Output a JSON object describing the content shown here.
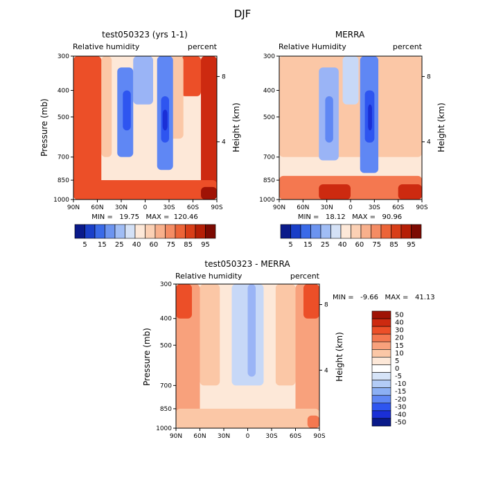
{
  "page_title": "DJF",
  "colors": {
    "neg5": "#1a2fd6",
    "neg4": "#2e55f0",
    "neg3": "#5f87f4",
    "neg2": "#9ab4f6",
    "neg1": "#c7d8f7",
    "zero": "#fde8d8",
    "pos1": "#fbc7a6",
    "pos2": "#f8a17c",
    "pos3": "#f47850",
    "pos4": "#ec4f28",
    "pos5": "#cd2a10",
    "pos6": "#9f1305"
  },
  "chart_data": [
    {
      "type": "heatmap",
      "title": "test050323 (yrs 1-1)",
      "variable": "Relative humidity",
      "units": "percent",
      "ylabel": "Pressure (mb)",
      "ylabel_right": "Height (km)",
      "x_ticks": [
        "90N",
        "60N",
        "30N",
        "0",
        "30S",
        "60S",
        "90S"
      ],
      "y_ticks": [
        "300",
        "400",
        "500",
        "700",
        "850",
        "1000"
      ],
      "height_ticks": [
        "8",
        "4"
      ],
      "ylim": [
        1000,
        300
      ],
      "stats_text": "MIN =   19.75   MAX =  120.46",
      "min": 19.75,
      "max": 120.46,
      "colorbar": {
        "labels": [
          "5",
          "15",
          "25",
          "40",
          "60",
          "75",
          "85",
          "95"
        ],
        "colors": [
          "#0a1a8a",
          "#1a3fc8",
          "#3a6ae8",
          "#6c94f0",
          "#a0bdf5",
          "#d4e1f6",
          "#fde8d8",
          "#fbd0b4",
          "#f8b08c",
          "#f48c64",
          "#ec6438",
          "#d83e18",
          "#b51f06",
          "#7c0a02"
        ]
      },
      "regions": [
        {
          "lat": [
            -90,
            -70
          ],
          "p": [
            300,
            1000
          ],
          "level": "pos5"
        },
        {
          "lat": [
            -70,
            -45
          ],
          "p": [
            300,
            420
          ],
          "level": "pos4"
        },
        {
          "lat": [
            -48,
            -30
          ],
          "p": [
            300,
            600
          ],
          "level": "pos1"
        },
        {
          "lat": [
            -35,
            -15
          ],
          "p": [
            300,
            780
          ],
          "level": "neg3"
        },
        {
          "lat": [
            -30,
            -20
          ],
          "p": [
            420,
            620
          ],
          "level": "neg4"
        },
        {
          "lat": [
            -28,
            -22
          ],
          "p": [
            470,
            560
          ],
          "level": "neg5"
        },
        {
          "lat": [
            -10,
            15
          ],
          "p": [
            300,
            450
          ],
          "level": "neg2"
        },
        {
          "lat": [
            15,
            35
          ],
          "p": [
            330,
            700
          ],
          "level": "neg3"
        },
        {
          "lat": [
            18,
            28
          ],
          "p": [
            400,
            560
          ],
          "level": "neg4"
        },
        {
          "lat": [
            42,
            55
          ],
          "p": [
            300,
            700
          ],
          "level": "pos1"
        },
        {
          "lat": [
            55,
            90
          ],
          "p": [
            300,
            1000
          ],
          "level": "pos4"
        },
        {
          "lat": [
            -90,
            90
          ],
          "p": [
            850,
            1000
          ],
          "level": "pos4"
        },
        {
          "lat": [
            -90,
            -70
          ],
          "p": [
            900,
            1000
          ],
          "level": "pos6"
        }
      ]
    },
    {
      "type": "heatmap",
      "title": "MERRA",
      "variable": "Relative Humidity",
      "units": "percent",
      "ylabel": "Pressure (mb)",
      "ylabel_right": "Height (km)",
      "x_ticks": [
        "90N",
        "60N",
        "30N",
        "0",
        "30S",
        "60S",
        "90S"
      ],
      "y_ticks": [
        "300",
        "400",
        "500",
        "700",
        "850",
        "1000"
      ],
      "height_ticks": [
        "8",
        "4"
      ],
      "ylim": [
        1000,
        300
      ],
      "stats_text": "MIN =   18.12   MAX =   90.96",
      "min": 18.12,
      "max": 90.96,
      "colorbar": {
        "labels": [
          "5",
          "15",
          "25",
          "40",
          "60",
          "75",
          "85",
          "95"
        ],
        "colors": [
          "#0a1a8a",
          "#1a3fc8",
          "#3a6ae8",
          "#6c94f0",
          "#a0bdf5",
          "#d4e1f6",
          "#fde8d8",
          "#fbd0b4",
          "#f8b08c",
          "#f48c64",
          "#ec6438",
          "#d83e18",
          "#b51f06",
          "#7c0a02"
        ]
      },
      "regions": [
        {
          "lat": [
            -90,
            90
          ],
          "p": [
            300,
            700
          ],
          "level": "pos1"
        },
        {
          "lat": [
            -35,
            -12
          ],
          "p": [
            300,
            800
          ],
          "level": "neg3"
        },
        {
          "lat": [
            -30,
            -18
          ],
          "p": [
            400,
            620
          ],
          "level": "neg4"
        },
        {
          "lat": [
            -27,
            -22
          ],
          "p": [
            450,
            560
          ],
          "level": "neg5"
        },
        {
          "lat": [
            -10,
            10
          ],
          "p": [
            300,
            450
          ],
          "level": "neg1"
        },
        {
          "lat": [
            15,
            40
          ],
          "p": [
            330,
            720
          ],
          "level": "neg2"
        },
        {
          "lat": [
            22,
            32
          ],
          "p": [
            420,
            620
          ],
          "level": "neg3"
        },
        {
          "lat": [
            -90,
            90
          ],
          "p": [
            820,
            1000
          ],
          "level": "pos3"
        },
        {
          "lat": [
            -90,
            -60
          ],
          "p": [
            880,
            1000
          ],
          "level": "pos5"
        },
        {
          "lat": [
            0,
            40
          ],
          "p": [
            880,
            1000
          ],
          "level": "pos5"
        }
      ]
    },
    {
      "type": "heatmap",
      "title": "test050323 - MERRA",
      "variable": "Relative humidity",
      "units": "percent",
      "ylabel": "Pressure (mb)",
      "ylabel_right": "Height (km)",
      "x_ticks": [
        "90N",
        "60N",
        "30N",
        "0",
        "30S",
        "60S",
        "90S"
      ],
      "y_ticks": [
        "300",
        "400",
        "500",
        "700",
        "850",
        "1000"
      ],
      "height_ticks": [
        "8",
        "4"
      ],
      "ylim": [
        1000,
        300
      ],
      "stats_text": "MIN =   -9.66   MAX =   41.13",
      "min": -9.66,
      "max": 41.13,
      "colorbar": {
        "labels": [
          "50",
          "40",
          "30",
          "20",
          "15",
          "10",
          "5",
          "0",
          "-5",
          "-10",
          "-15",
          "-20",
          "-30",
          "-40",
          "-50"
        ],
        "colors": [
          "#9f1305",
          "#cd2a10",
          "#ec4f28",
          "#f47850",
          "#f8a17c",
          "#fbc7a6",
          "#fde8d8",
          "#ffffff",
          "#d6e4f8",
          "#b3ccf6",
          "#8cb0f4",
          "#5f87f4",
          "#2e55f0",
          "#1a2fd6",
          "#0a1a8a"
        ]
      },
      "regions": [
        {
          "lat": [
            -90,
            -60
          ],
          "p": [
            300,
            1000
          ],
          "level": "pos2"
        },
        {
          "lat": [
            -60,
            -35
          ],
          "p": [
            300,
            700
          ],
          "level": "pos1"
        },
        {
          "lat": [
            -35,
            35
          ],
          "p": [
            300,
            800
          ],
          "level": "zero"
        },
        {
          "lat": [
            -20,
            20
          ],
          "p": [
            300,
            700
          ],
          "level": "neg1"
        },
        {
          "lat": [
            -10,
            0
          ],
          "p": [
            300,
            650
          ],
          "level": "neg2"
        },
        {
          "lat": [
            35,
            60
          ],
          "p": [
            300,
            700
          ],
          "level": "pos1"
        },
        {
          "lat": [
            60,
            90
          ],
          "p": [
            300,
            1000
          ],
          "level": "pos2"
        },
        {
          "lat": [
            -90,
            90
          ],
          "p": [
            850,
            1000
          ],
          "level": "pos1"
        },
        {
          "lat": [
            -90,
            -70
          ],
          "p": [
            300,
            400
          ],
          "level": "pos4"
        },
        {
          "lat": [
            70,
            90
          ],
          "p": [
            300,
            400
          ],
          "level": "pos4"
        },
        {
          "lat": [
            -90,
            -75
          ],
          "p": [
            900,
            1000
          ],
          "level": "pos3"
        }
      ]
    }
  ]
}
